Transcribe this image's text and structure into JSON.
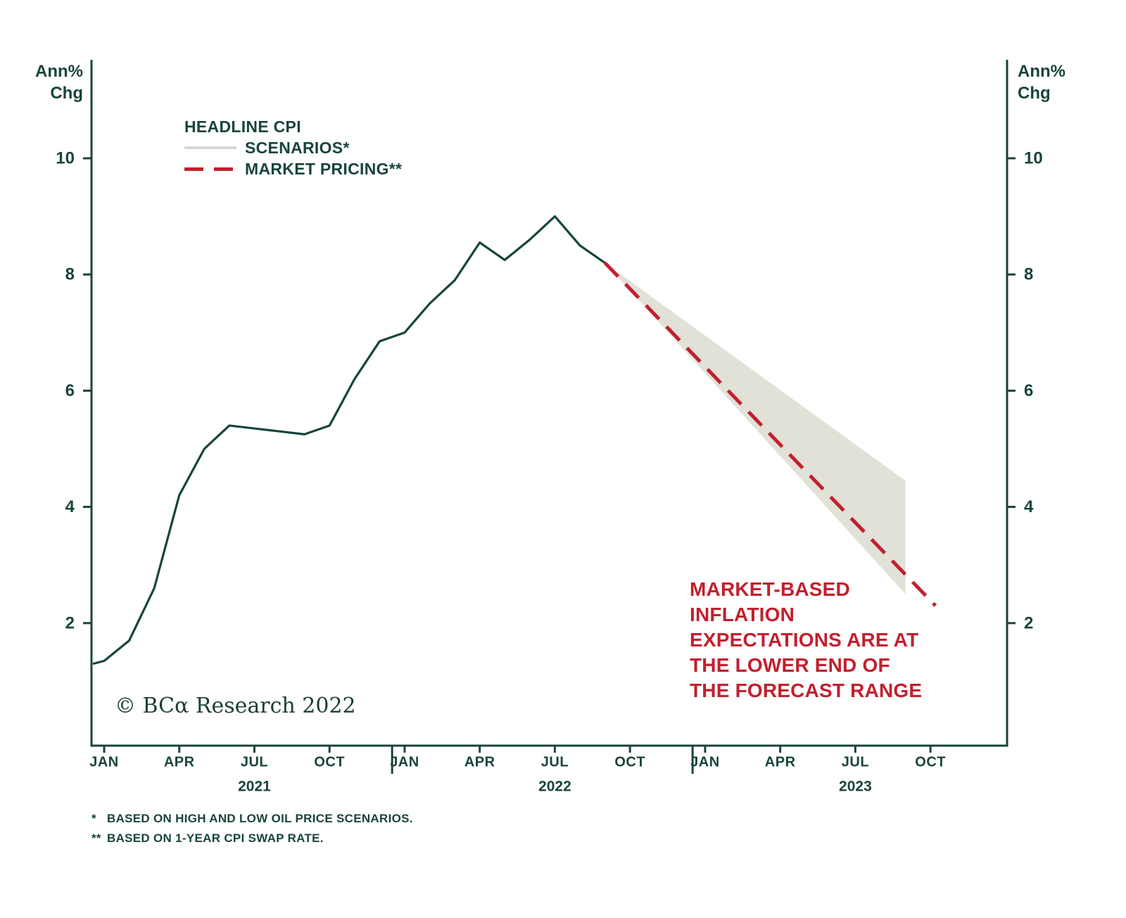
{
  "colors": {
    "teal": "#18443d",
    "red": "#c2202e",
    "band": "#e2e1d7",
    "legend_gray": "#d8d8d8"
  },
  "y_axis_title": {
    "line1": "Ann%",
    "line2": "Chg"
  },
  "legend": {
    "headline": "HEADLINE CPI",
    "scenarios": "SCENARIOS*",
    "market_pricing": "MARKET PRICING**"
  },
  "annotation": {
    "lines": [
      "MARKET-BASED",
      "INFLATION",
      "EXPECTATIONS ARE AT",
      "THE LOWER END OF",
      "THE FORECAST RANGE"
    ]
  },
  "copyright": "© BCα Research 2022",
  "footnotes": [
    {
      "marker": "*",
      "text": "BASED ON HIGH AND LOW OIL PRICE SCENARIOS."
    },
    {
      "marker": "**",
      "text": "BASED ON 1-YEAR CPI SWAP RATE."
    }
  ],
  "chart_data": {
    "type": "line",
    "title": "",
    "ylabel": "Ann% Chg",
    "grid": false,
    "legend_position": "top-left",
    "ylim": [
      0,
      11.6
    ],
    "yticks": [
      2,
      4,
      6,
      8,
      10
    ],
    "x_unit": "months since Jan 2021",
    "xlim_months": [
      -0.5,
      36
    ],
    "x_tick_months": [
      0,
      3,
      6,
      9,
      12,
      15,
      18,
      21,
      24,
      27,
      30,
      33
    ],
    "x_tick_labels": [
      "JAN",
      "APR",
      "JUL",
      "OCT",
      "JAN",
      "APR",
      "JUL",
      "OCT",
      "JAN",
      "APR",
      "JUL",
      "OCT"
    ],
    "year_separators": [
      11.5,
      23.5
    ],
    "year_labels": [
      {
        "text": "2021",
        "month": 6
      },
      {
        "text": "2022",
        "month": 18
      },
      {
        "text": "2023",
        "month": 30
      }
    ],
    "series": [
      {
        "name": "HEADLINE CPI",
        "style": "solid",
        "color": "#18443d",
        "months": [
          -0.45,
          0,
          1,
          2,
          3,
          4,
          5,
          6,
          7,
          8,
          9,
          10,
          11,
          12,
          13,
          14,
          15,
          16,
          17,
          18,
          19,
          20
        ],
        "values": [
          1.3,
          1.35,
          1.7,
          2.6,
          4.2,
          5.0,
          5.4,
          5.35,
          5.3,
          5.25,
          5.4,
          6.2,
          6.85,
          7.0,
          7.5,
          7.9,
          8.55,
          8.25,
          8.6,
          9.0,
          8.5,
          8.2
        ]
      },
      {
        "name": "MARKET PRICING**",
        "style": "dashed",
        "color": "#c2202e",
        "months": [
          20,
          33.2
        ],
        "values": [
          8.2,
          2.3
        ]
      }
    ],
    "band": {
      "name": "SCENARIOS*",
      "color": "#e2e1d7",
      "months": [
        20,
        32
      ],
      "upper": [
        8.2,
        4.45
      ],
      "lower": [
        8.2,
        2.5
      ]
    }
  }
}
